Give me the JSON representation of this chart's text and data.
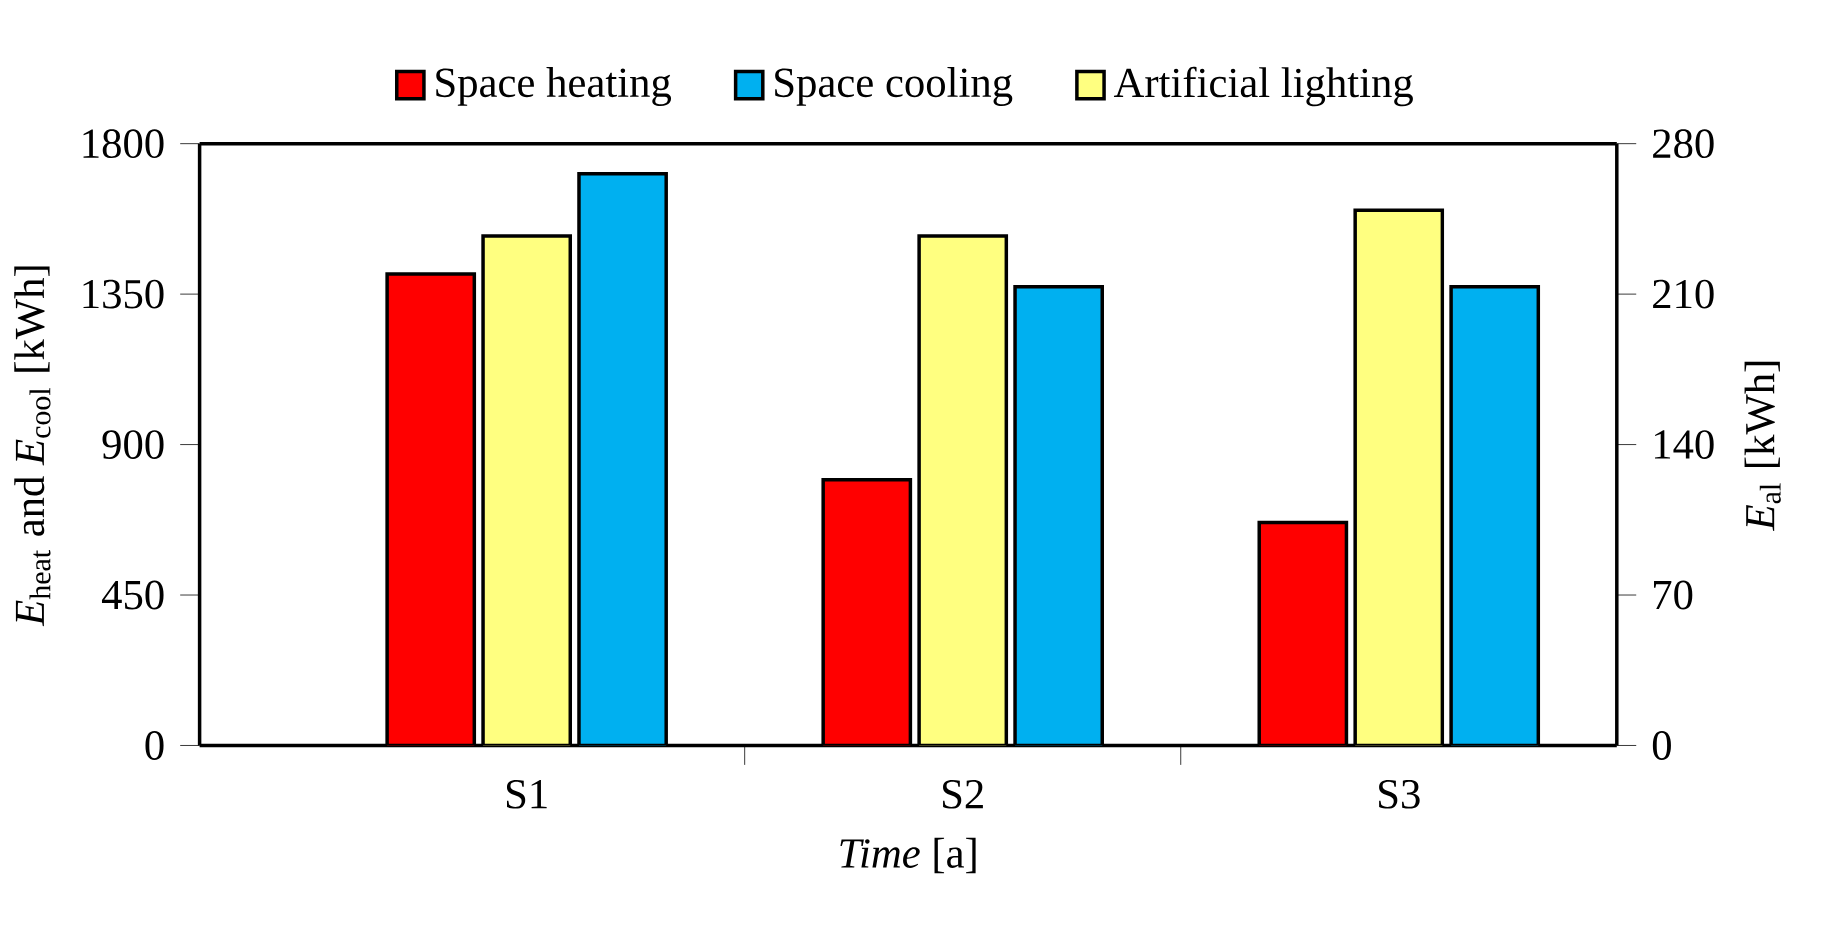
{
  "chart_data": {
    "type": "bar",
    "categories": [
      "S1",
      "S2",
      "S3"
    ],
    "xlabel": "*Time* [a]",
    "ylabel": "*E*$_{heat}$ and *E*$_{cool}$ [kWh]",
    "y2label": "*E*$_{al}$ [kWh]",
    "ylim": [
      0,
      1800
    ],
    "yticks": [
      0,
      450,
      900,
      1350,
      1800
    ],
    "y2lim": [
      0,
      280
    ],
    "y2ticks": [
      0,
      70,
      140,
      210,
      280
    ],
    "legend": "top",
    "series": [
      {
        "name": "Space heating",
        "color": "#ff0000",
        "values": [
          1410,
          795,
          667
        ]
      },
      {
        "name": "Space cooling",
        "color": "#00b0f0",
        "values": [
          1710,
          1372,
          1372
        ]
      },
      {
        "name": "Artificial lighting",
        "color": "#ffff80",
        "values": [
          237,
          237,
          249
        ],
        "axis": "y2"
      }
    ]
  }
}
